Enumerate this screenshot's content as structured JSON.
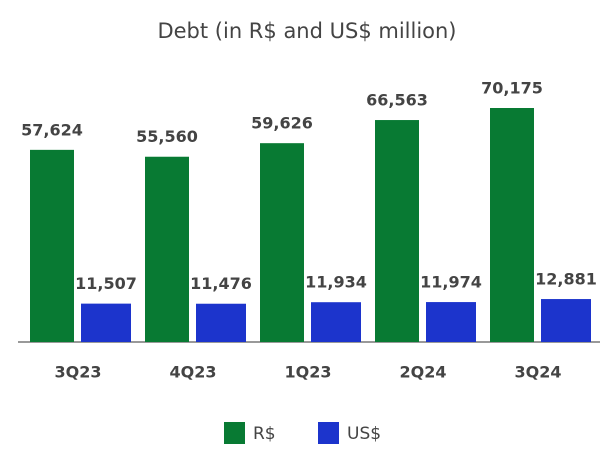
{
  "chart_data": {
    "type": "bar",
    "title": "Debt (in R$ and US$ million)",
    "categories": [
      "3Q23",
      "4Q23",
      "1Q23",
      "2Q24",
      "3Q24"
    ],
    "series": [
      {
        "name": "R$",
        "color": "#087a33",
        "values": [
          57624,
          55560,
          59626,
          66563,
          70175
        ],
        "value_labels": [
          "57,624",
          "55,560",
          "59,626",
          "66,563",
          "70,175"
        ]
      },
      {
        "name": "US$",
        "color": "#1c34cc",
        "values": [
          11507,
          11476,
          11934,
          11974,
          12881
        ],
        "value_labels": [
          "11,507",
          "11,476",
          "11,934",
          "11,974",
          "12,881"
        ]
      }
    ]
  }
}
